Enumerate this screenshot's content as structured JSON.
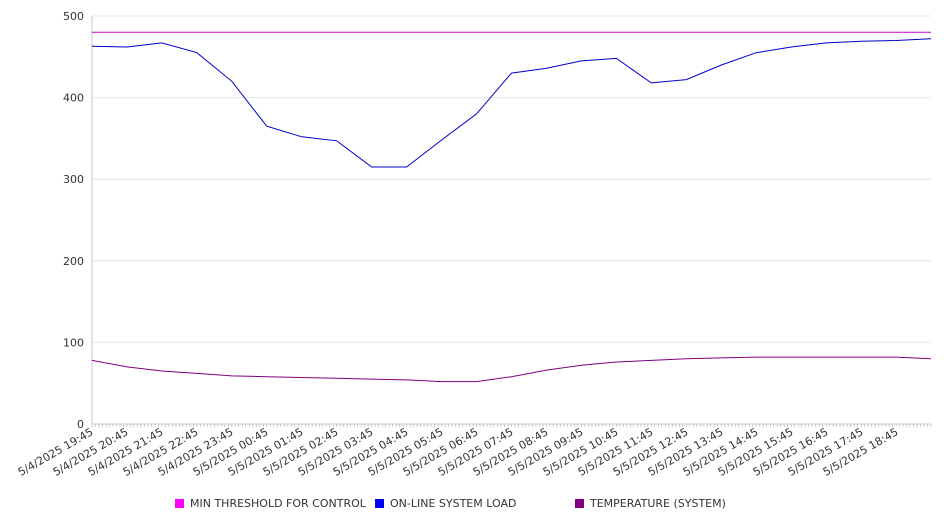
{
  "chart_data": {
    "type": "line",
    "y_range": [
      0,
      500
    ],
    "y_ticks": [
      "0",
      "100",
      "200",
      "300",
      "400",
      "500"
    ],
    "grid": "horizontal",
    "legend_placement": "bottom",
    "x_tick_labels": [
      "5/4/2025 19:45",
      "5/4/2025 20:45",
      "5/4/2025 21:45",
      "5/4/2025 22:45",
      "5/4/2025 23:45",
      "5/5/2025 00:45",
      "5/5/2025 01:45",
      "5/5/2025 02:45",
      "5/5/2025 03:45",
      "5/5/2025 04:45",
      "5/5/2025 05:45",
      "5/5/2025 06:45",
      "5/5/2025 07:45",
      "5/5/2025 08:45",
      "5/5/2025 09:45",
      "5/5/2025 10:45",
      "5/5/2025 11:45",
      "5/5/2025 12:45",
      "5/5/2025 13:45",
      "5/5/2025 14:45",
      "5/5/2025 15:45",
      "5/5/2025 16:45",
      "5/5/2025 17:45",
      "5/5/2025 18:45"
    ],
    "x": [
      "19:45",
      "20:45",
      "21:45",
      "22:45",
      "23:45",
      "00:45",
      "01:45",
      "02:45",
      "03:45",
      "04:45",
      "05:45",
      "06:45",
      "07:45",
      "08:45",
      "09:45",
      "10:45",
      "11:45",
      "12:45",
      "13:45",
      "14:45",
      "15:45",
      "16:45",
      "17:45",
      "18:45",
      "19:45"
    ],
    "series": [
      {
        "name": "MIN THRESHOLD FOR CONTROL",
        "color": "#cc00cc",
        "values": [
          480,
          480,
          480,
          480,
          480,
          480,
          480,
          480,
          480,
          480,
          480,
          480,
          480,
          480,
          480,
          480,
          480,
          480,
          480,
          480,
          480,
          480,
          480,
          480,
          480
        ]
      },
      {
        "name": "ON-LINE SYSTEM LOAD",
        "color": "#0000cc",
        "values": [
          463,
          462,
          467,
          455,
          420,
          365,
          352,
          347,
          315,
          315,
          348,
          380,
          430,
          436,
          445,
          448,
          418,
          422,
          440,
          455,
          462,
          467,
          469,
          470,
          472
        ]
      },
      {
        "name": "TEMPERATURE (SYSTEM)",
        "color": "#800080",
        "values": [
          78,
          70,
          65,
          62,
          59,
          58,
          57,
          56,
          55,
          54,
          52,
          52,
          58,
          66,
          72,
          76,
          78,
          80,
          81,
          82,
          82,
          82,
          82,
          82,
          80
        ]
      }
    ]
  }
}
